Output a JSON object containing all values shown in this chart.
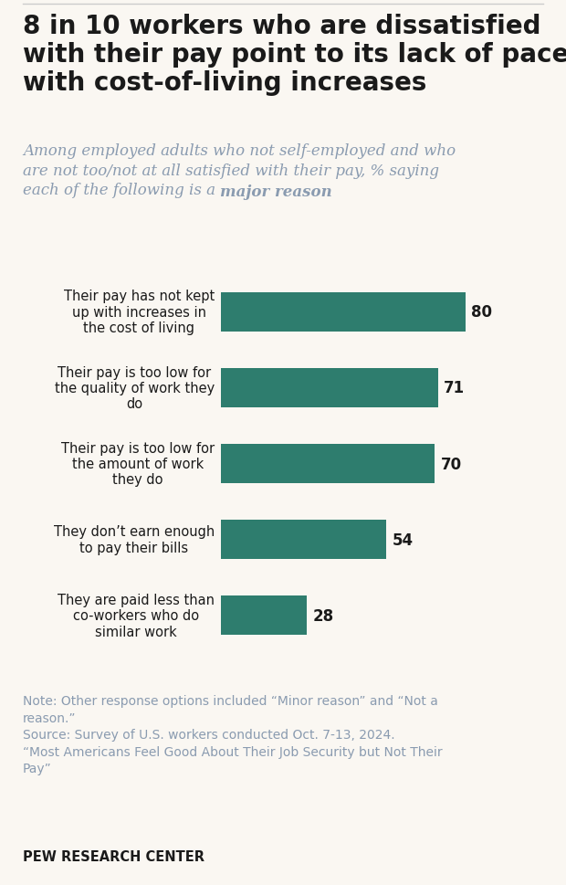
{
  "title": "8 in 10 workers who are dissatisfied\nwith their pay point to its lack of pace\nwith cost-of-living increases",
  "subtitle_line1": "Among employed adults who not self-employed and who",
  "subtitle_line2": "are not too/not at all satisfied with their pay, % saying",
  "subtitle_line3_plain": "each of the following is a ",
  "subtitle_line3_bold": "major reason",
  "categories": [
    "Their pay has not kept\nup with increases in\nthe cost of living",
    "Their pay is too low for\nthe quality of work they\ndo",
    "Their pay is too low for\nthe amount of work\nthey do",
    "They don’t earn enough\nto pay their bills",
    "They are paid less than\nco-workers who do\nsimilar work"
  ],
  "values": [
    80,
    71,
    70,
    54,
    28
  ],
  "bar_color": "#2e7d6e",
  "value_fontsize": 12,
  "label_fontsize": 10.5,
  "note_line1": "Note: Other response options included “Minor reason” and “Not a",
  "note_line2": "reason.”",
  "note_line3": "Source: Survey of U.S. workers conducted Oct. 7-13, 2024.",
  "note_line4": "“Most Americans Feel Good About Their Job Security but Not Their",
  "note_line5": "Pay”",
  "footer": "PEW RESEARCH CENTER",
  "background_color": "#faf7f2",
  "title_color": "#1a1a1a",
  "subtitle_color": "#8a9bb0",
  "note_color": "#8a9bb0",
  "bar_height": 0.52,
  "title_fontsize": 20,
  "subtitle_fontsize": 12,
  "note_fontsize": 10
}
